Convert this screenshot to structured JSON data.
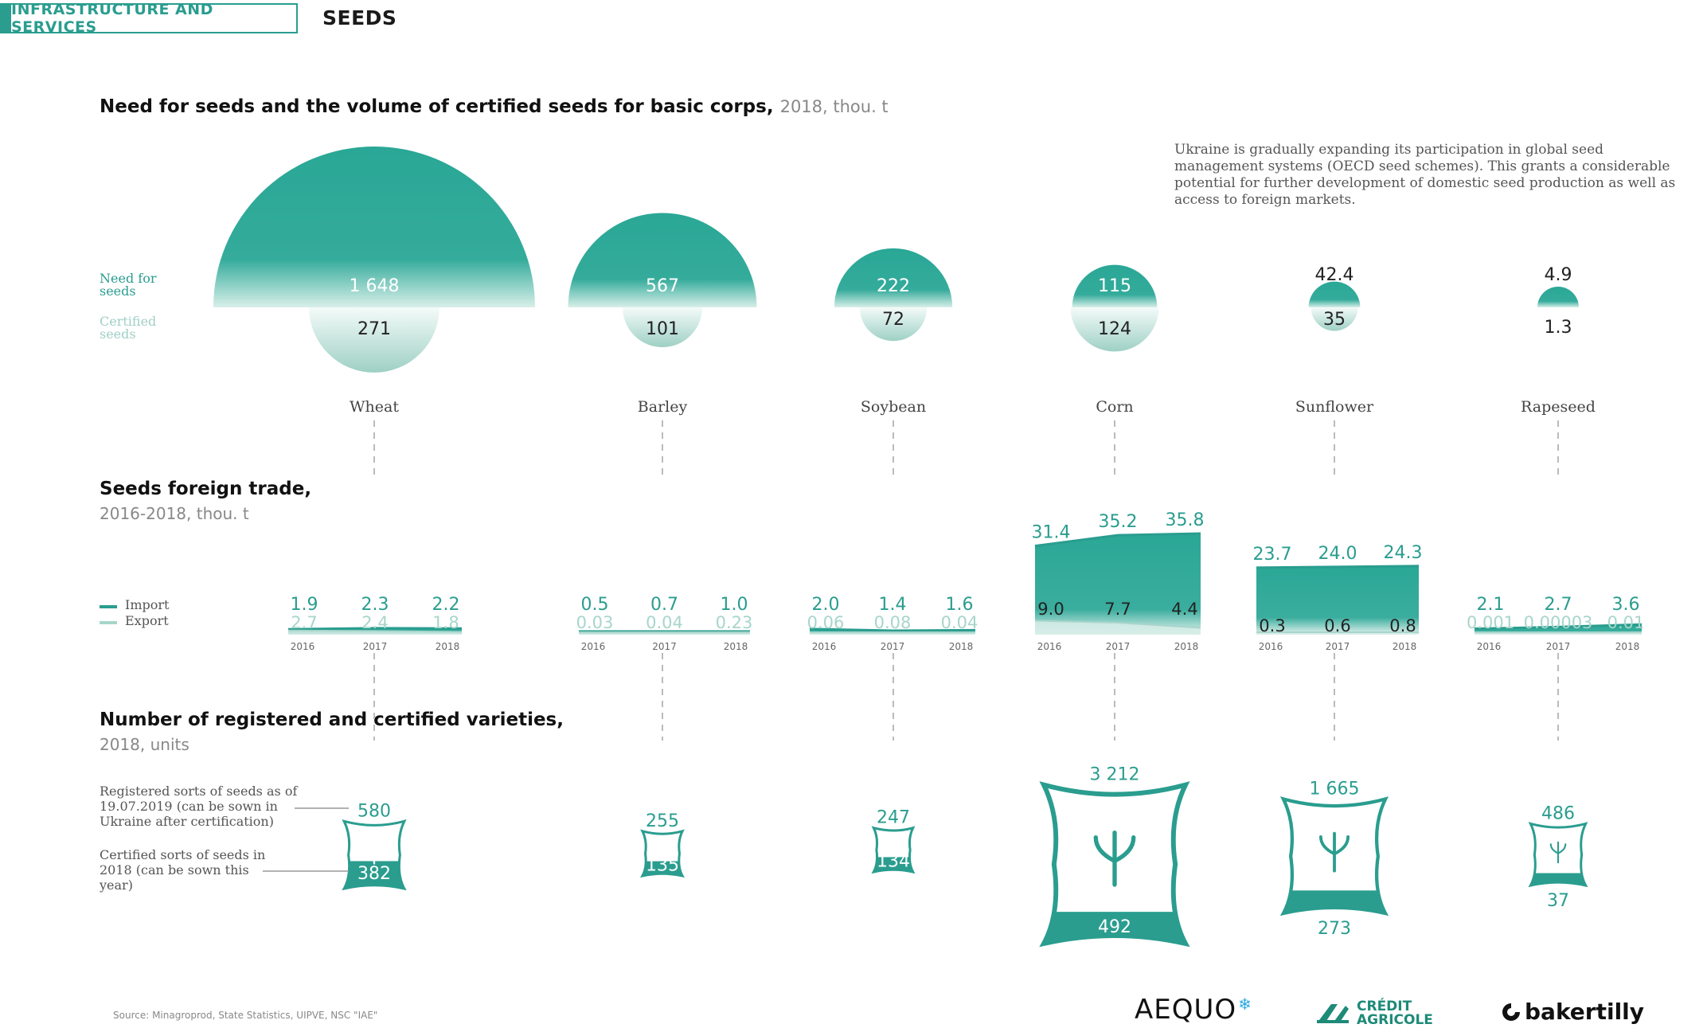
{
  "header": {
    "section": "INFRASTRUCTURE AND SERVICES",
    "topic": "SEEDS"
  },
  "colors": {
    "primary": "#2a9d8f",
    "secondary": "#a8d5cb",
    "guide": "#bbbbbb"
  },
  "note": "Ukraine is gradually expanding its participation in global seed management systems (OECD seed schemes). This grants a considerable potential for further development of domestic seed production as well as access to foreign markets.",
  "legends": {
    "need": "Need for seeds",
    "certified": "Certified seeds",
    "import": "Import",
    "export": "Export",
    "registered": "Registered sorts of seeds as of 19.07.2019 (can be sown in Ukraine after certification)",
    "certified_sorts": "Certified sorts of seeds in 2018 (can be sown this year)"
  },
  "chart_data": [
    {
      "type": "bubble",
      "title": "Need for seeds and the volume of certified seeds for basic corps,",
      "subtitle": "2018, thou. t",
      "categories": [
        "Wheat",
        "Barley",
        "Soybean",
        "Corn",
        "Sunflower",
        "Rapeseed"
      ],
      "series": [
        {
          "name": "Need for seeds",
          "values": [
            1648,
            567,
            222,
            115,
            42.4,
            4.9
          ],
          "labels": [
            "1 648",
            "567",
            "222",
            "115",
            "42.4",
            "4.9"
          ]
        },
        {
          "name": "Certified seeds",
          "values": [
            271,
            101,
            72,
            124,
            35,
            1.3
          ],
          "labels": [
            "271",
            "101",
            "72",
            "124",
            "35",
            "1.3"
          ]
        }
      ]
    },
    {
      "type": "area",
      "title": "Seeds foreign trade,",
      "subtitle": "2016-2018, thou. t",
      "x": [
        "2016",
        "2017",
        "2018"
      ],
      "series": [
        {
          "name": "Import",
          "values": {
            "Wheat": [
              1.9,
              2.3,
              2.2
            ],
            "Barley": [
              0.5,
              0.7,
              1.0
            ],
            "Soybean": [
              2.0,
              1.4,
              1.6
            ],
            "Corn": [
              31.4,
              35.2,
              35.8
            ],
            "Sunflower": [
              23.7,
              24.0,
              24.3
            ],
            "Rapeseed": [
              2.1,
              2.7,
              3.6
            ]
          },
          "labels": {
            "Wheat": [
              "1.9",
              "2.3",
              "2.2"
            ],
            "Barley": [
              "0.5",
              "0.7",
              "1.0"
            ],
            "Soybean": [
              "2.0",
              "1.4",
              "1.6"
            ],
            "Corn": [
              "31.4",
              "35.2",
              "35.8"
            ],
            "Sunflower": [
              "23.7",
              "24.0",
              "24.3"
            ],
            "Rapeseed": [
              "2.1",
              "2.7",
              "3.6"
            ]
          }
        },
        {
          "name": "Export",
          "values": {
            "Wheat": [
              2.7,
              2.4,
              1.8
            ],
            "Barley": [
              0.03,
              0.04,
              0.23
            ],
            "Soybean": [
              0.06,
              0.08,
              0.04
            ],
            "Corn": [
              9.0,
              7.7,
              4.4
            ],
            "Sunflower": [
              0.3,
              0.6,
              0.8
            ],
            "Rapeseed": [
              0.001,
              3e-05,
              0.01
            ]
          },
          "labels": {
            "Wheat": [
              "2.7",
              "2.4",
              "1.8"
            ],
            "Barley": [
              "0.03",
              "0.04",
              "0.23"
            ],
            "Soybean": [
              "0.06",
              "0.08",
              "0.04"
            ],
            "Corn": [
              "9.0",
              "7.7",
              "4.4"
            ],
            "Sunflower": [
              "0.3",
              "0.6",
              "0.8"
            ],
            "Rapeseed": [
              "0.001",
              "0.00003",
              "0.01"
            ]
          }
        }
      ]
    },
    {
      "type": "pictogram",
      "title": "Number of registered and certified varieties,",
      "subtitle": "2018, units",
      "categories": [
        "Wheat",
        "Barley",
        "Soybean",
        "Corn",
        "Sunflower",
        "Rapeseed"
      ],
      "series": [
        {
          "name": "Registered",
          "values": [
            580,
            255,
            247,
            3212,
            1665,
            486
          ],
          "labels": [
            "580",
            "255",
            "247",
            "3 212",
            "1 665",
            "486"
          ]
        },
        {
          "name": "Certified",
          "values": [
            382,
            135,
            134,
            492,
            273,
            37
          ],
          "labels": [
            "382",
            "135",
            "134",
            "492",
            "273",
            "37"
          ]
        }
      ]
    }
  ],
  "source": "Source: Minagroprod, State Statistics, UIPVE, NSC \"IAE\"",
  "logos": {
    "aequo": "AEQUO",
    "ca_line1": "CRÉDIT",
    "ca_line2": "AGRICOLE",
    "baker": "bakertilly"
  }
}
